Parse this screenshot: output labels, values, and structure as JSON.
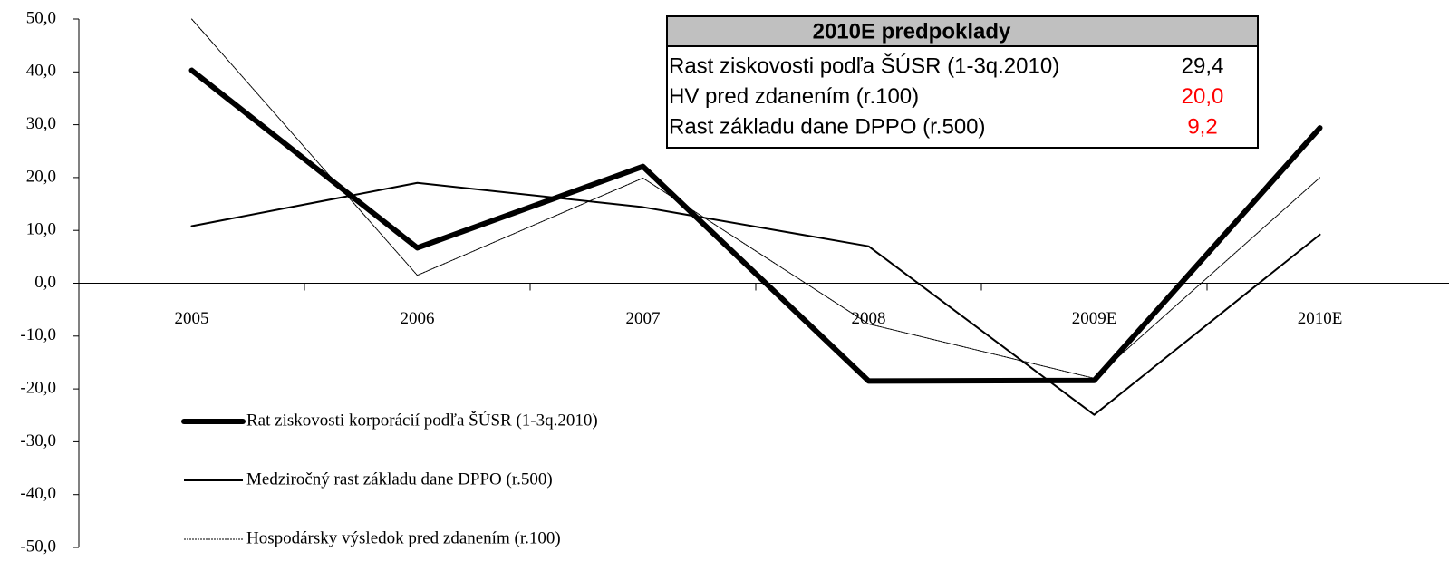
{
  "chart_data": {
    "type": "line",
    "categories": [
      "2005",
      "2006",
      "2007",
      "2008",
      "2009E",
      "2010E"
    ],
    "series": [
      {
        "name": "Rat ziskovosti korporácií podľa ŠÚSR (1-3q.2010)",
        "color": "#000000",
        "width": 6,
        "dash": false,
        "values": [
          40.3,
          6.7,
          22.1,
          -18.5,
          -18.4,
          29.4
        ]
      },
      {
        "name": "Medziročný rast základu dane DPPO (r.500)",
        "color": "#000000",
        "width": 2,
        "dash": false,
        "values": [
          10.8,
          19.0,
          14.4,
          7.0,
          -24.9,
          9.2
        ]
      },
      {
        "name": "Hospodársky výsledok pred zdanením (r.100)",
        "color": "#000000",
        "width": 1,
        "dash": true,
        "values": [
          50.0,
          1.5,
          19.9,
          -7.7,
          -18.0,
          20.0
        ]
      }
    ],
    "ylim": [
      -50,
      50
    ],
    "yticks": [
      {
        "value": -50,
        "label": "-50,0"
      },
      {
        "value": -40,
        "label": "-40,0"
      },
      {
        "value": -30,
        "label": "-30,0"
      },
      {
        "value": -20,
        "label": "-20,0"
      },
      {
        "value": -10,
        "label": "-10,0"
      },
      {
        "value": 0,
        "label": "0,0"
      },
      {
        "value": 10,
        "label": "10,0"
      },
      {
        "value": 20,
        "label": "20,0"
      },
      {
        "value": 30,
        "label": "30,0"
      },
      {
        "value": 40,
        "label": "40,0"
      },
      {
        "value": 50,
        "label": "50,0"
      }
    ],
    "grid": false,
    "legend": "bottom-left",
    "table": {
      "title": "2010E predpoklady",
      "rows": [
        {
          "label": "Rast ziskovosti podľa ŠÚSR (1-3q.2010)",
          "value": "29,4",
          "color": "#000000"
        },
        {
          "label": "HV pred zdanením (r.100)",
          "value": "20,0",
          "color": "#ff0000"
        },
        {
          "label": "Rast základu dane DPPO (r.500)",
          "value": "9,2",
          "color": "#ff0000"
        }
      ]
    }
  }
}
